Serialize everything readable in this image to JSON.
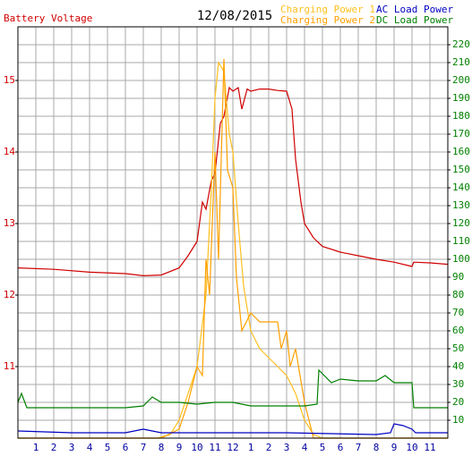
{
  "chart_data": {
    "type": "line",
    "title": "12/08/2015",
    "y_label": "Battery Voltage",
    "xlim": [
      0,
      24
    ],
    "xticks": [
      1,
      2,
      3,
      4,
      5,
      6,
      7,
      8,
      9,
      10,
      11,
      12,
      {
        "value": 13,
        "label": "1"
      },
      {
        "value": 14,
        "label": "2"
      },
      {
        "value": 15,
        "label": "3"
      },
      {
        "value": 16,
        "label": "4"
      },
      {
        "value": 17,
        "label": "5"
      },
      {
        "value": 18,
        "label": "6"
      },
      {
        "value": 19,
        "label": "7"
      },
      {
        "value": 20,
        "label": "8"
      },
      {
        "value": 21,
        "label": "9"
      },
      {
        "value": 22,
        "label": "10"
      },
      {
        "value": 23,
        "label": "11"
      }
    ],
    "ylim": [
      10,
      15.75
    ],
    "yticks": [
      11,
      12,
      13,
      14,
      15
    ],
    "y2lim": [
      0,
      230
    ],
    "y2ticks": [
      10,
      20,
      30,
      40,
      50,
      60,
      70,
      80,
      90,
      100,
      110,
      120,
      130,
      140,
      150,
      160,
      170,
      180,
      190,
      200,
      210,
      220
    ],
    "grid": true,
    "series": [
      {
        "name": "Battery Voltage",
        "color": "#d00000",
        "axis": "y",
        "x": [
          0,
          2,
          4,
          6,
          7,
          8,
          9,
          9.5,
          10,
          10.3,
          10.5,
          10.8,
          11,
          11.3,
          11.5,
          11.8,
          12,
          12.3,
          12.5,
          12.8,
          13,
          13.5,
          14,
          14.5,
          15,
          15.3,
          15.5,
          15.8,
          16,
          16.5,
          17,
          18,
          19,
          20,
          21,
          22,
          22.1,
          23,
          24
        ],
        "values": [
          12.38,
          12.36,
          12.32,
          12.3,
          12.27,
          12.28,
          12.38,
          12.55,
          12.75,
          13.3,
          13.2,
          13.6,
          13.7,
          14.4,
          14.5,
          14.9,
          14.85,
          14.9,
          14.6,
          14.88,
          14.85,
          14.88,
          14.88,
          14.86,
          14.85,
          14.6,
          13.9,
          13.3,
          13.0,
          12.8,
          12.68,
          12.6,
          12.55,
          12.5,
          12.46,
          12.4,
          12.46,
          12.45,
          12.43
        ]
      },
      {
        "name": "Charging Power 1",
        "color": "#ffc020",
        "axis": "y2",
        "x": [
          0,
          7.8,
          8.5,
          9,
          9.5,
          10,
          10.5,
          10.8,
          11,
          11.2,
          11.5,
          11.8,
          12,
          12.3,
          12.6,
          13,
          13.5,
          14,
          14.5,
          15,
          15.5,
          16,
          16.5,
          17,
          24
        ],
        "values": [
          0,
          0,
          2,
          10,
          25,
          40,
          80,
          140,
          190,
          210,
          205,
          170,
          160,
          120,
          85,
          60,
          50,
          45,
          40,
          35,
          25,
          10,
          2,
          0,
          0
        ]
      },
      {
        "name": "Charging Power 2",
        "color": "#ffa000",
        "axis": "y2",
        "x": [
          0,
          8,
          9,
          9.5,
          10,
          10.3,
          10.5,
          10.7,
          11,
          11.2,
          11.5,
          11.7,
          12,
          12.2,
          12.5,
          13,
          13.5,
          14,
          14.5,
          14.7,
          15,
          15.2,
          15.5,
          16,
          16.5,
          24
        ],
        "values": [
          0,
          0,
          5,
          20,
          40,
          35,
          100,
          80,
          160,
          100,
          212,
          150,
          140,
          90,
          60,
          70,
          65,
          65,
          65,
          50,
          60,
          40,
          50,
          20,
          0,
          0
        ]
      },
      {
        "name": "AC Load Power",
        "color": "#0000c0",
        "axis": "y2",
        "x": [
          0,
          3,
          6,
          7,
          7.5,
          8,
          10,
          15,
          20,
          20.8,
          21,
          21.5,
          22,
          22.2,
          24
        ],
        "values": [
          4,
          3,
          3,
          5,
          4,
          3,
          3,
          3,
          2,
          3,
          8,
          7,
          5,
          3,
          3
        ]
      },
      {
        "name": "DC Load Power",
        "color": "#008000",
        "axis": "y2",
        "x": [
          0,
          0.2,
          0.5,
          6,
          7,
          7.5,
          8,
          9,
          10,
          11,
          12,
          13,
          14,
          15,
          16,
          16.7,
          16.8,
          17.5,
          18,
          19,
          20,
          20.5,
          21,
          22,
          22.1,
          24
        ],
        "values": [
          20,
          25,
          17,
          17,
          18,
          23,
          20,
          20,
          19,
          20,
          20,
          18,
          18,
          18,
          18,
          19,
          38,
          31,
          33,
          32,
          32,
          35,
          31,
          31,
          17,
          17
        ]
      }
    ]
  }
}
